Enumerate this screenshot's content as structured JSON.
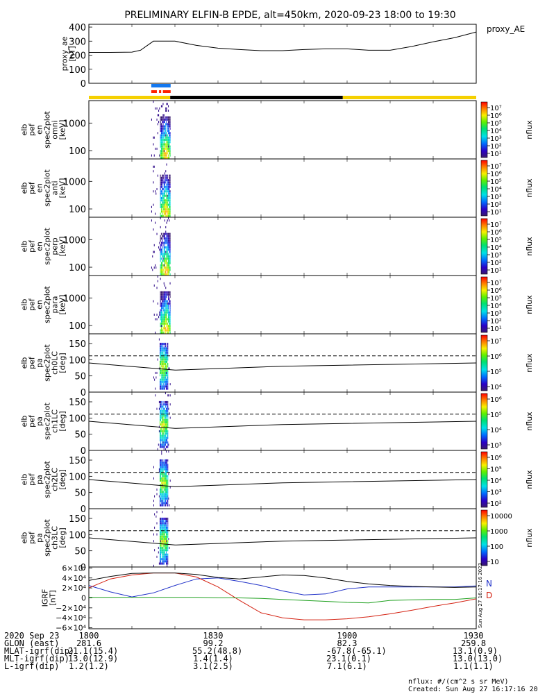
{
  "title": "PRELIMINARY ELFIN-B EPDE, alt=450km, 2020-09-23 18:00 to 19:30",
  "colors": {
    "yellow": "#f5d000",
    "black": "#000000",
    "blue": "#1478f0",
    "red": "#ff2200",
    "igrf_n": "#1f30c8",
    "igrf_d": "#d42010",
    "igrf_e": "#1ea01e"
  },
  "chart_data": [
    {
      "type": "line",
      "panel": "proxy_ae",
      "ylabel": [
        "proxy_ae",
        "[nT]"
      ],
      "legend": "proxy_AE",
      "ylim": [
        0,
        420
      ],
      "yticks": [
        0,
        100,
        200,
        300,
        400
      ],
      "x_minutes": [
        0,
        5,
        10,
        12,
        15,
        20,
        25,
        30,
        35,
        40,
        45,
        50,
        55,
        60,
        65,
        70,
        75,
        80,
        85,
        90
      ],
      "values": [
        220,
        220,
        222,
        235,
        300,
        300,
        270,
        250,
        240,
        232,
        232,
        240,
        245,
        245,
        235,
        235,
        262,
        295,
        325,
        365
      ]
    },
    {
      "type": "bar",
      "panel": "science_zone_bars",
      "segments": [
        {
          "row": "blue",
          "color": "blue",
          "from_min": 14.5,
          "to_min": 19.0
        },
        {
          "row": "red",
          "color": "red",
          "from_min": 14.5,
          "to_min": 15.8
        },
        {
          "row": "red",
          "color": "red",
          "from_min": 16.3,
          "to_min": 16.8
        },
        {
          "row": "red",
          "color": "red",
          "from_min": 17.2,
          "to_min": 19.0
        },
        {
          "row": "orbit",
          "color": "yellow",
          "from_min": 0,
          "to_min": 18.9
        },
        {
          "row": "orbit",
          "color": "black",
          "from_min": 18.9,
          "to_min": 59.0
        },
        {
          "row": "orbit",
          "color": "yellow",
          "from_min": 59.0,
          "to_min": 90
        }
      ]
    },
    {
      "type": "heatmap",
      "panel": "energy_omni",
      "ylabel": [
        "elb",
        "pef",
        "en",
        "spec2plot",
        "omni",
        "[keV]"
      ],
      "yscale": "log",
      "ylim": [
        50,
        6500
      ],
      "ytick_labels": [
        "1000",
        "100"
      ],
      "ytick_values": [
        1000,
        100
      ],
      "colorbar": {
        "label": "nflux",
        "ticks": [
          "10⁷",
          "10⁶",
          "10⁵",
          "10⁴",
          "10³",
          "10²",
          "10¹"
        ],
        "log_range": [
          1,
          7
        ]
      },
      "data_window_min": [
        14.5,
        19.0
      ]
    },
    {
      "type": "heatmap",
      "panel": "energy_anti",
      "ylabel": [
        "elb",
        "pef",
        "en",
        "spec2plot",
        "anti",
        "[keV]"
      ],
      "yscale": "log",
      "ylim": [
        50,
        6500
      ],
      "ytick_labels": [
        "1000",
        "100"
      ],
      "ytick_values": [
        1000,
        100
      ],
      "colorbar": {
        "label": "nflux",
        "ticks": [
          "10⁷",
          "10⁶",
          "10⁵",
          "10⁴",
          "10³",
          "10²",
          "10¹"
        ],
        "log_range": [
          1,
          7
        ]
      },
      "data_window_min": [
        14.5,
        19.0
      ]
    },
    {
      "type": "heatmap",
      "panel": "energy_perp",
      "ylabel": [
        "elb",
        "pef",
        "en",
        "spec2plot",
        "perp",
        "[keV]"
      ],
      "yscale": "log",
      "ylim": [
        50,
        6500
      ],
      "ytick_labels": [
        "1000",
        "100"
      ],
      "ytick_values": [
        1000,
        100
      ],
      "colorbar": {
        "label": "nflux",
        "ticks": [
          "10⁷",
          "10⁶",
          "10⁵",
          "10⁴",
          "10³",
          "10²",
          "10¹"
        ],
        "log_range": [
          1,
          7
        ]
      },
      "data_window_min": [
        14.5,
        19.0
      ]
    },
    {
      "type": "heatmap",
      "panel": "energy_para",
      "ylabel": [
        "elb",
        "pef",
        "en",
        "spec2plot",
        "para",
        "[keV]"
      ],
      "yscale": "log",
      "ylim": [
        50,
        6500
      ],
      "ytick_labels": [
        "1000",
        "100"
      ],
      "ytick_values": [
        1000,
        100
      ],
      "colorbar": {
        "label": "nflux",
        "ticks": [
          "10⁷",
          "10⁶",
          "10⁵",
          "10⁴",
          "10³",
          "10²",
          "10¹"
        ],
        "log_range": [
          1,
          7
        ]
      },
      "data_window_min": [
        14.5,
        19.0
      ]
    },
    {
      "type": "heatmap",
      "panel": "pa_ch0",
      "ylabel": [
        "elb",
        "pef",
        "pa",
        "spec2plot",
        "ch0LC",
        "[deg]"
      ],
      "ylim": [
        0,
        180
      ],
      "yticks": [
        0,
        50,
        100,
        150
      ],
      "colorbar": {
        "label": "nflux",
        "ticks": [
          "10⁷",
          "10⁶",
          "10⁵",
          "10⁴"
        ],
        "log_range": [
          3.5,
          7
        ]
      },
      "lc_solid_deg": [
        [
          0,
          90
        ],
        [
          20,
          68
        ],
        [
          45,
          80
        ],
        [
          90,
          90
        ]
      ],
      "lc_dashed_deg": [
        [
          0,
          112
        ],
        [
          90,
          112
        ]
      ],
      "data_window_min": [
        15.0,
        19.0
      ]
    },
    {
      "type": "heatmap",
      "panel": "pa_ch1",
      "ylabel": [
        "elb",
        "pef",
        "pa",
        "spec2plot",
        "ch1LC",
        "[deg]"
      ],
      "ylim": [
        0,
        180
      ],
      "yticks": [
        0,
        50,
        100,
        150
      ],
      "colorbar": {
        "label": "nflux",
        "ticks": [
          "10⁶",
          "10⁵",
          "10⁴",
          "10³"
        ],
        "log_range": [
          2.8,
          6.5
        ]
      },
      "lc_solid_deg": [
        [
          0,
          90
        ],
        [
          20,
          68
        ],
        [
          45,
          80
        ],
        [
          90,
          90
        ]
      ],
      "lc_dashed_deg": [
        [
          0,
          112
        ],
        [
          90,
          112
        ]
      ],
      "data_window_min": [
        15.0,
        19.0
      ]
    },
    {
      "type": "heatmap",
      "panel": "pa_ch2",
      "ylabel": [
        "elb",
        "pef",
        "pa",
        "spec2plot",
        "ch2LC",
        "[deg]"
      ],
      "ylim": [
        0,
        180
      ],
      "yticks": [
        0,
        50,
        100,
        150
      ],
      "colorbar": {
        "label": "nflux",
        "ticks": [
          "10⁶",
          "10⁵",
          "10⁴",
          "10³",
          "10²"
        ],
        "log_range": [
          1.8,
          6.2
        ]
      },
      "lc_solid_deg": [
        [
          0,
          90
        ],
        [
          20,
          68
        ],
        [
          45,
          80
        ],
        [
          90,
          90
        ]
      ],
      "lc_dashed_deg": [
        [
          0,
          112
        ],
        [
          90,
          112
        ]
      ],
      "data_window_min": [
        15.0,
        19.0
      ]
    },
    {
      "type": "heatmap",
      "panel": "pa_ch3",
      "ylabel": [
        "elb",
        "pef",
        "pa",
        "spec2plot",
        "ch3LC",
        "[deg]"
      ],
      "ylim": [
        0,
        180
      ],
      "yticks": [
        0,
        50,
        100,
        150
      ],
      "colorbar": {
        "label": "nflux",
        "ticks": [
          "10000",
          "1000",
          "100",
          "10"
        ],
        "log_range": [
          1,
          4
        ]
      },
      "lc_solid_deg": [
        [
          0,
          90
        ],
        [
          20,
          68
        ],
        [
          45,
          80
        ],
        [
          90,
          90
        ]
      ],
      "lc_dashed_deg": [
        [
          0,
          112
        ],
        [
          90,
          112
        ]
      ],
      "data_window_min": [
        15.0,
        19.0
      ]
    },
    {
      "type": "line",
      "panel": "igrf",
      "ylabel": [
        "IGRF",
        "[nT]"
      ],
      "ylim": [
        -62000,
        62000
      ],
      "ytick_labels": [
        "6×10⁴",
        "4×10⁴",
        "2×10⁴",
        "0",
        "−2×10⁴",
        "−4×10⁴",
        "−6×10⁴"
      ],
      "ytick_values": [
        60000,
        40000,
        20000,
        0,
        -20000,
        -40000,
        -60000
      ],
      "legend": [
        "N",
        "D"
      ],
      "side_text": "Sun Aug 27 16:17:16 2023",
      "x_minutes": [
        0,
        5,
        10,
        15,
        20,
        25,
        30,
        35,
        40,
        45,
        50,
        55,
        60,
        65,
        70,
        75,
        80,
        85,
        90
      ],
      "series": [
        {
          "name": "N",
          "color": "igrf_n",
          "values": [
            25000,
            12000,
            2000,
            10000,
            25000,
            38000,
            40000,
            33000,
            25000,
            14000,
            6000,
            8000,
            18000,
            22000,
            22000,
            22000,
            22000,
            22000,
            24000
          ]
        },
        {
          "name": "D",
          "color": "igrf_d",
          "values": [
            20000,
            38000,
            46000,
            50000,
            50000,
            42000,
            22000,
            -5000,
            -30000,
            -40000,
            -44000,
            -44000,
            -42000,
            -38000,
            -32000,
            -25000,
            -17000,
            -10000,
            -2000
          ]
        },
        {
          "name": "black",
          "color": "black",
          "values": [
            35000,
            43000,
            49000,
            50000,
            50000,
            47000,
            41000,
            38000,
            42000,
            46000,
            45000,
            40000,
            33000,
            28000,
            25000,
            23000,
            22000,
            21000,
            22000
          ]
        },
        {
          "name": "E",
          "color": "igrf_e",
          "values": [
            1000,
            1000,
            1000,
            1000,
            1000,
            1000,
            0,
            0,
            -1000,
            -3000,
            -5000,
            -7000,
            -9000,
            -10000,
            -5000,
            -4000,
            -3000,
            -3000,
            0
          ]
        }
      ]
    }
  ],
  "footer": {
    "rows": [
      [
        "2020 Sep 23",
        "1800",
        "1830",
        "1900",
        "1930"
      ],
      [
        "GLON (east)",
        "281.6",
        "99.2",
        "82.3",
        "259.8"
      ],
      [
        "MLAT-igrf(dip)",
        "21.1(15.4)",
        "55.2(48.8)",
        "-67.8(-65.1)",
        "13.1(0.9)"
      ],
      [
        "MLT-igrf(dip)",
        "13.0(12.9)",
        "1.4(1.4)",
        "23.1(0.1)",
        "13.0(13.0)"
      ],
      [
        "L-igrf(dip)",
        "1.2(1.2)",
        "3.1(2.5)",
        "7.1(6.1)",
        "1.1(1.1)"
      ]
    ],
    "units_note": "nflux: #/(cm^2 s sr MeV)",
    "created": "Created: Sun Aug 27 16:17:16 2023"
  }
}
